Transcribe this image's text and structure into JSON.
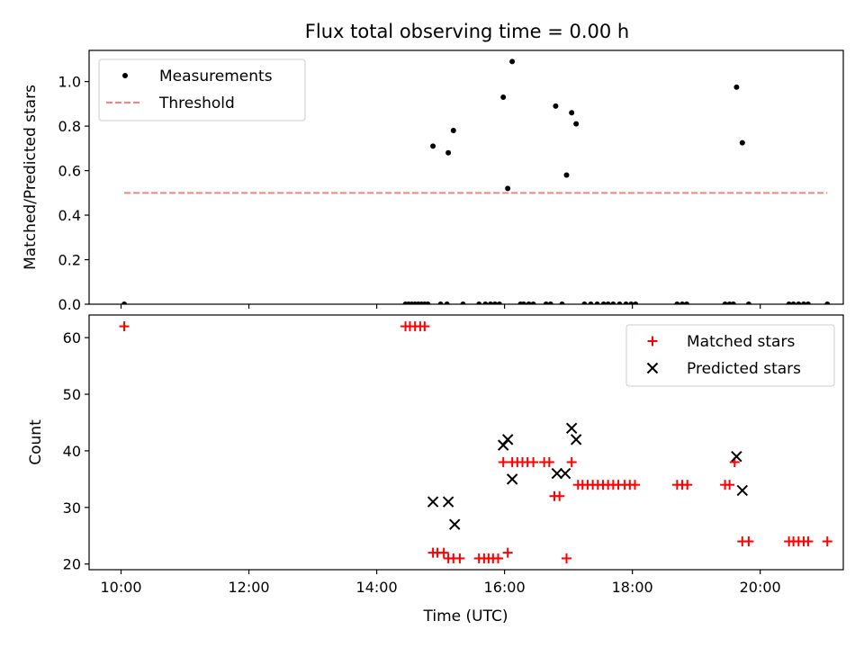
{
  "colors": {
    "measurement": "#000000",
    "threshold": "#ff7f7f",
    "matched": "#ff0000",
    "predicted": "#000000"
  },
  "chart_data": [
    {
      "type": "scatter",
      "title": "Flux total observing time = 0.00 h",
      "xlabel": "",
      "ylabel": "Matched/Predicted stars",
      "x_unit": "hours UTC",
      "xlim": [
        9.5,
        21.3
      ],
      "ylim": [
        0,
        1.14
      ],
      "y_ticks": [
        0.0,
        0.2,
        0.4,
        0.6,
        0.8,
        1.0
      ],
      "y_tick_labels": [
        "0.0",
        "0.2",
        "0.4",
        "0.6",
        "0.8",
        "1.0"
      ],
      "x_ticks": [
        10,
        12,
        14,
        16,
        18,
        20
      ],
      "x_tick_labels": [
        "",
        "",
        "",
        "",
        "",
        ""
      ],
      "legend_position": "top-left",
      "series": [
        {
          "name": "Measurements",
          "marker": "dot",
          "points": [
            [
              10.05,
              0
            ],
            [
              14.45,
              0
            ],
            [
              14.5,
              0
            ],
            [
              14.55,
              0
            ],
            [
              14.6,
              0
            ],
            [
              14.65,
              0
            ],
            [
              14.7,
              0
            ],
            [
              14.75,
              0
            ],
            [
              14.8,
              0
            ],
            [
              14.88,
              0.71
            ],
            [
              15.0,
              0
            ],
            [
              15.1,
              0
            ],
            [
              15.12,
              0.68
            ],
            [
              15.2,
              0.78
            ],
            [
              15.35,
              0
            ],
            [
              15.6,
              0
            ],
            [
              15.7,
              0
            ],
            [
              15.78,
              0
            ],
            [
              15.85,
              0
            ],
            [
              15.92,
              0
            ],
            [
              15.98,
              0.93
            ],
            [
              16.05,
              0.52
            ],
            [
              16.12,
              1.09
            ],
            [
              16.25,
              0
            ],
            [
              16.3,
              0
            ],
            [
              16.38,
              0
            ],
            [
              16.45,
              0
            ],
            [
              16.65,
              0
            ],
            [
              16.72,
              0
            ],
            [
              16.8,
              0.89
            ],
            [
              16.9,
              0
            ],
            [
              16.97,
              0.58
            ],
            [
              17.05,
              0.86
            ],
            [
              17.12,
              0.81
            ],
            [
              17.25,
              0
            ],
            [
              17.35,
              0
            ],
            [
              17.45,
              0
            ],
            [
              17.55,
              0
            ],
            [
              17.62,
              0
            ],
            [
              17.7,
              0
            ],
            [
              17.8,
              0
            ],
            [
              17.9,
              0
            ],
            [
              17.98,
              0
            ],
            [
              18.05,
              0
            ],
            [
              18.7,
              0
            ],
            [
              18.78,
              0
            ],
            [
              18.85,
              0
            ],
            [
              19.45,
              0
            ],
            [
              19.52,
              0
            ],
            [
              19.58,
              0
            ],
            [
              19.63,
              0.975
            ],
            [
              19.72,
              0.725
            ],
            [
              19.82,
              0
            ],
            [
              20.45,
              0
            ],
            [
              20.52,
              0
            ],
            [
              20.6,
              0
            ],
            [
              20.68,
              0
            ],
            [
              20.75,
              0
            ],
            [
              21.05,
              0
            ]
          ]
        },
        {
          "name": "Threshold",
          "line_style": "dashed",
          "x": [
            10.05,
            21.05
          ],
          "y": [
            0.5,
            0.5
          ]
        }
      ]
    },
    {
      "type": "scatter",
      "title": "",
      "xlabel": "Time (UTC)",
      "ylabel": "Count",
      "x_unit": "hours UTC",
      "xlim": [
        9.5,
        21.3
      ],
      "ylim": [
        19,
        64
      ],
      "y_ticks": [
        20,
        30,
        40,
        50,
        60
      ],
      "y_tick_labels": [
        "20",
        "30",
        "40",
        "50",
        "60"
      ],
      "x_ticks": [
        10,
        12,
        14,
        16,
        18,
        20
      ],
      "x_tick_labels": [
        "10:00",
        "12:00",
        "14:00",
        "16:00",
        "18:00",
        "20:00"
      ],
      "legend_position": "top-right",
      "series": [
        {
          "name": "Matched stars",
          "marker": "plus",
          "points": [
            [
              10.05,
              62
            ],
            [
              14.45,
              62
            ],
            [
              14.52,
              62
            ],
            [
              14.6,
              62
            ],
            [
              14.68,
              62
            ],
            [
              14.75,
              62
            ],
            [
              14.88,
              22
            ],
            [
              14.95,
              22
            ],
            [
              15.05,
              22
            ],
            [
              15.12,
              21
            ],
            [
              15.2,
              21
            ],
            [
              15.3,
              21
            ],
            [
              15.6,
              21
            ],
            [
              15.68,
              21
            ],
            [
              15.75,
              21
            ],
            [
              15.82,
              21
            ],
            [
              15.9,
              21
            ],
            [
              16.05,
              22
            ],
            [
              15.98,
              38
            ],
            [
              16.12,
              38
            ],
            [
              16.2,
              38
            ],
            [
              16.28,
              38
            ],
            [
              16.36,
              38
            ],
            [
              16.45,
              38
            ],
            [
              16.62,
              38
            ],
            [
              16.7,
              38
            ],
            [
              16.78,
              32
            ],
            [
              16.86,
              32
            ],
            [
              16.97,
              21
            ],
            [
              17.05,
              38
            ],
            [
              17.15,
              34
            ],
            [
              17.22,
              34
            ],
            [
              17.3,
              34
            ],
            [
              17.38,
              34
            ],
            [
              17.46,
              34
            ],
            [
              17.54,
              34
            ],
            [
              17.62,
              34
            ],
            [
              17.7,
              34
            ],
            [
              17.78,
              34
            ],
            [
              17.88,
              34
            ],
            [
              17.96,
              34
            ],
            [
              18.04,
              34
            ],
            [
              18.7,
              34
            ],
            [
              18.78,
              34
            ],
            [
              18.86,
              34
            ],
            [
              19.45,
              34
            ],
            [
              19.52,
              34
            ],
            [
              19.6,
              38
            ],
            [
              19.72,
              24
            ],
            [
              19.82,
              24
            ],
            [
              20.45,
              24
            ],
            [
              20.52,
              24
            ],
            [
              20.6,
              24
            ],
            [
              20.68,
              24
            ],
            [
              20.75,
              24
            ],
            [
              21.05,
              24
            ]
          ]
        },
        {
          "name": "Predicted stars",
          "marker": "x",
          "points": [
            [
              14.88,
              31
            ],
            [
              15.12,
              31
            ],
            [
              15.22,
              27
            ],
            [
              15.98,
              41
            ],
            [
              16.05,
              42
            ],
            [
              16.12,
              35
            ],
            [
              16.82,
              36
            ],
            [
              16.95,
              36
            ],
            [
              17.05,
              44
            ],
            [
              17.12,
              42
            ],
            [
              19.63,
              39
            ],
            [
              19.72,
              33
            ]
          ]
        }
      ]
    }
  ]
}
